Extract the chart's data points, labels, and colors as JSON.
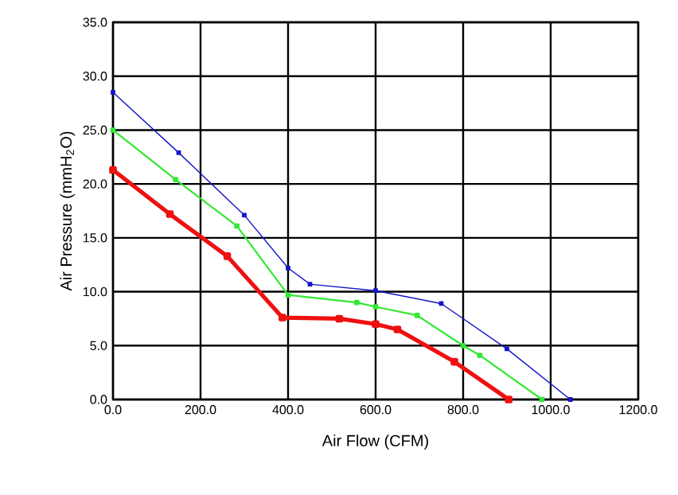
{
  "chart_data": {
    "type": "line",
    "xlabel": "Air Flow (CFM)",
    "ylabel": "Air Pressure (mmH$_{2}$O)",
    "xlim": [
      0,
      1200
    ],
    "ylim": [
      0,
      35
    ],
    "xticks": [
      {
        "value": 0,
        "label": "0.0"
      },
      {
        "value": 200,
        "label": "200.0"
      },
      {
        "value": 400,
        "label": "400.0"
      },
      {
        "value": 600,
        "label": "600.0"
      },
      {
        "value": 800,
        "label": "800.0"
      },
      {
        "value": 1000,
        "label": "1000.0"
      },
      {
        "value": 1200,
        "label": "1200.0"
      }
    ],
    "yticks": [
      {
        "value": 0,
        "label": "0.0"
      },
      {
        "value": 5,
        "label": "5.0"
      },
      {
        "value": 10,
        "label": "10.0"
      },
      {
        "value": 15,
        "label": "15.0"
      },
      {
        "value": 20,
        "label": "20.0"
      },
      {
        "value": 25,
        "label": "25.0"
      },
      {
        "value": 30,
        "label": "30.0"
      },
      {
        "value": 35,
        "label": "35.0"
      }
    ],
    "grid": true,
    "marker": "square",
    "series": [
      {
        "color": "#1414c8",
        "x": [
          0,
          150,
          300,
          400,
          450,
          600,
          750,
          900,
          1045
        ],
        "values": [
          28.5,
          22.9,
          17.1,
          12.2,
          10.7,
          10.1,
          8.9,
          4.7,
          0
        ]
      },
      {
        "color": "#33e833",
        "x": [
          0,
          143,
          283,
          400,
          557,
          600,
          695,
          800,
          838,
          980
        ],
        "values": [
          25.0,
          20.4,
          16.1,
          9.7,
          9.0,
          8.6,
          7.8,
          5.0,
          4.1,
          0
        ]
      },
      {
        "color": "#ee1111",
        "x": [
          0,
          130,
          261,
          387,
          517,
          600,
          650,
          780,
          904
        ],
        "values": [
          21.3,
          17.2,
          13.3,
          7.6,
          7.5,
          7.0,
          6.5,
          3.5,
          0
        ]
      }
    ]
  }
}
